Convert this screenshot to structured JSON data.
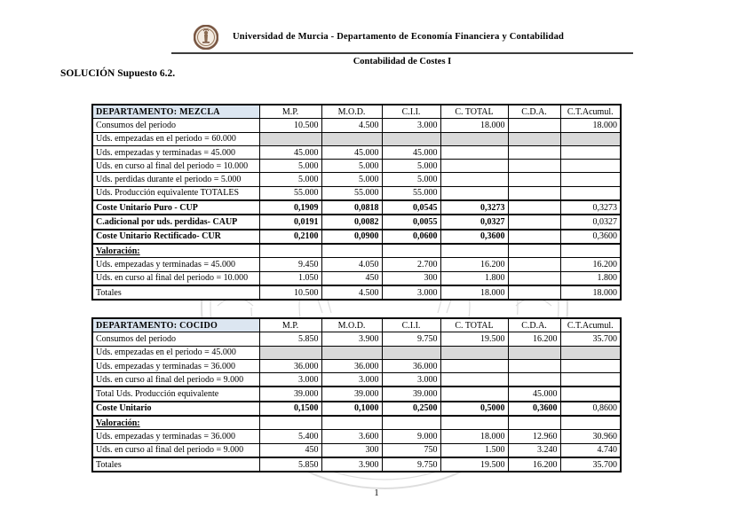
{
  "header": {
    "institution": "Universidad de Murcia - Departamento de Economía Financiera y Contabilidad",
    "course": "Contabilidad de Costes I",
    "title": "SOLUCIÓN Supuesto 6.2.",
    "logo_name": "university-of-murcia-seal"
  },
  "footer": {
    "page_number": "1"
  },
  "colors": {
    "dept_header_bg": "#dce6f1",
    "shaded_row_bg": "#d9d9d9",
    "border": "#000000",
    "watermark": "#c4c4c4",
    "seal_ring": "#7a5844"
  },
  "tables": [
    {
      "id": "mezcla",
      "name": "DEPARTAMENTO: MEZCLA",
      "columns": [
        "M.P.",
        "M.O.D.",
        "C.I.I.",
        "C. TOTAL",
        "C.D.A.",
        "C.T.Acumul."
      ],
      "rows": [
        {
          "label": "Consumos del periodo",
          "values": [
            "10.500",
            "4.500",
            "3.000",
            "18.000",
            "",
            "18.000"
          ]
        },
        {
          "label": "Uds. empezadas en el periodo = 60.000",
          "shaded": true,
          "values": [
            "",
            "",
            "",
            "",
            "",
            ""
          ]
        },
        {
          "label": "Uds. empezadas y terminadas = 45.000",
          "indent": true,
          "values": [
            "45.000",
            "45.000",
            "45.000",
            "",
            "",
            ""
          ]
        },
        {
          "label": "Uds. en curso al final del periodo = 10.000",
          "indent": true,
          "values": [
            "5.000",
            "5.000",
            "5.000",
            "",
            "",
            ""
          ]
        },
        {
          "label": "Uds. perdidas durante el periodo = 5.000",
          "indent": true,
          "values": [
            "5.000",
            "5.000",
            "5.000",
            "",
            "",
            ""
          ]
        },
        {
          "label": "Uds. Producción equivalente TOTALES",
          "values": [
            "55.000",
            "55.000",
            "55.000",
            "",
            "",
            ""
          ]
        },
        {
          "label": "Coste Unitario Puro - CUP",
          "bold": true,
          "thick_top": true,
          "values_bold_mask": [
            1,
            1,
            1,
            1,
            1,
            0
          ],
          "values": [
            "0,1909",
            "0,0818",
            "0,0545",
            "0,3273",
            "",
            "0,3273"
          ]
        },
        {
          "label": "C.adicional por uds. perdidas- CAUP",
          "bold": true,
          "thick_top": true,
          "values_bold_mask": [
            1,
            1,
            1,
            1,
            1,
            0
          ],
          "values": [
            "0,0191",
            "0,0082",
            "0,0055",
            "0,0327",
            "",
            "0,0327"
          ]
        },
        {
          "label": "Coste Unitario Rectificado- CUR",
          "bold": true,
          "thick_top": true,
          "values_bold_mask": [
            1,
            1,
            1,
            1,
            1,
            0
          ],
          "values": [
            "0,2100",
            "0,0900",
            "0,0600",
            "0,3600",
            "",
            "0,3600"
          ]
        },
        {
          "label": "Valoración:",
          "bold": true,
          "underline": true,
          "thick_top": true,
          "values": [
            "",
            "",
            "",
            "",
            "",
            ""
          ]
        },
        {
          "label": "Uds. empezadas y terminadas = 45.000",
          "indent": true,
          "values": [
            "9.450",
            "4.050",
            "2.700",
            "16.200",
            "",
            "16.200"
          ]
        },
        {
          "label": "Uds. en curso al final del periodo = 10.000",
          "indent": true,
          "values": [
            "1.050",
            "450",
            "300",
            "1.800",
            "",
            "1.800"
          ]
        },
        {
          "label": "Totales",
          "thick_top": true,
          "values": [
            "10.500",
            "4.500",
            "3.000",
            "18.000",
            "",
            "18.000"
          ]
        }
      ]
    },
    {
      "id": "cocido",
      "name": "DEPARTAMENTO: COCIDO",
      "columns": [
        "M.P.",
        "M.O.D.",
        "C.I.I.",
        "C. TOTAL",
        "C.D.A.",
        "C.T.Acumul."
      ],
      "rows": [
        {
          "label": "Consumos del periodo",
          "values": [
            "5.850",
            "3.900",
            "9.750",
            "19.500",
            "16.200",
            "35.700"
          ]
        },
        {
          "label": "Uds. empezadas en el periodo = 45.000",
          "shaded": true,
          "values": [
            "",
            "",
            "",
            "",
            "",
            ""
          ]
        },
        {
          "label": "Uds. empezadas y terminadas = 36.000",
          "indent": true,
          "values": [
            "36.000",
            "36.000",
            "36.000",
            "",
            "",
            ""
          ]
        },
        {
          "label": "Uds. en curso al final del periodo = 9.000",
          "indent": true,
          "values": [
            "3.000",
            "3.000",
            "3.000",
            "",
            "",
            ""
          ]
        },
        {
          "label": "Total Uds. Producción equivalente",
          "thick_top": true,
          "values": [
            "39.000",
            "39.000",
            "39.000",
            "",
            "45.000",
            ""
          ]
        },
        {
          "label": "Coste Unitario",
          "bold": true,
          "thick_top": true,
          "values_bold_mask": [
            1,
            1,
            1,
            1,
            1,
            0
          ],
          "values": [
            "0,1500",
            "0,1000",
            "0,2500",
            "0,5000",
            "0,3600",
            "0,8600"
          ]
        },
        {
          "label": "Valoración:",
          "bold": true,
          "underline": true,
          "thick_top": true,
          "values": [
            "",
            "",
            "",
            "",
            "",
            ""
          ]
        },
        {
          "label": "Uds. empezadas y terminadas = 36.000",
          "indent": true,
          "values": [
            "5.400",
            "3.600",
            "9.000",
            "18.000",
            "12.960",
            "30.960"
          ]
        },
        {
          "label": "Uds. en curso al final del periodo = 9.000",
          "indent": true,
          "values": [
            "450",
            "300",
            "750",
            "1.500",
            "3.240",
            "4.740"
          ]
        },
        {
          "label": "Totales",
          "thick_top": true,
          "values": [
            "5.850",
            "3.900",
            "9.750",
            "19.500",
            "16.200",
            "35.700"
          ]
        }
      ]
    }
  ]
}
